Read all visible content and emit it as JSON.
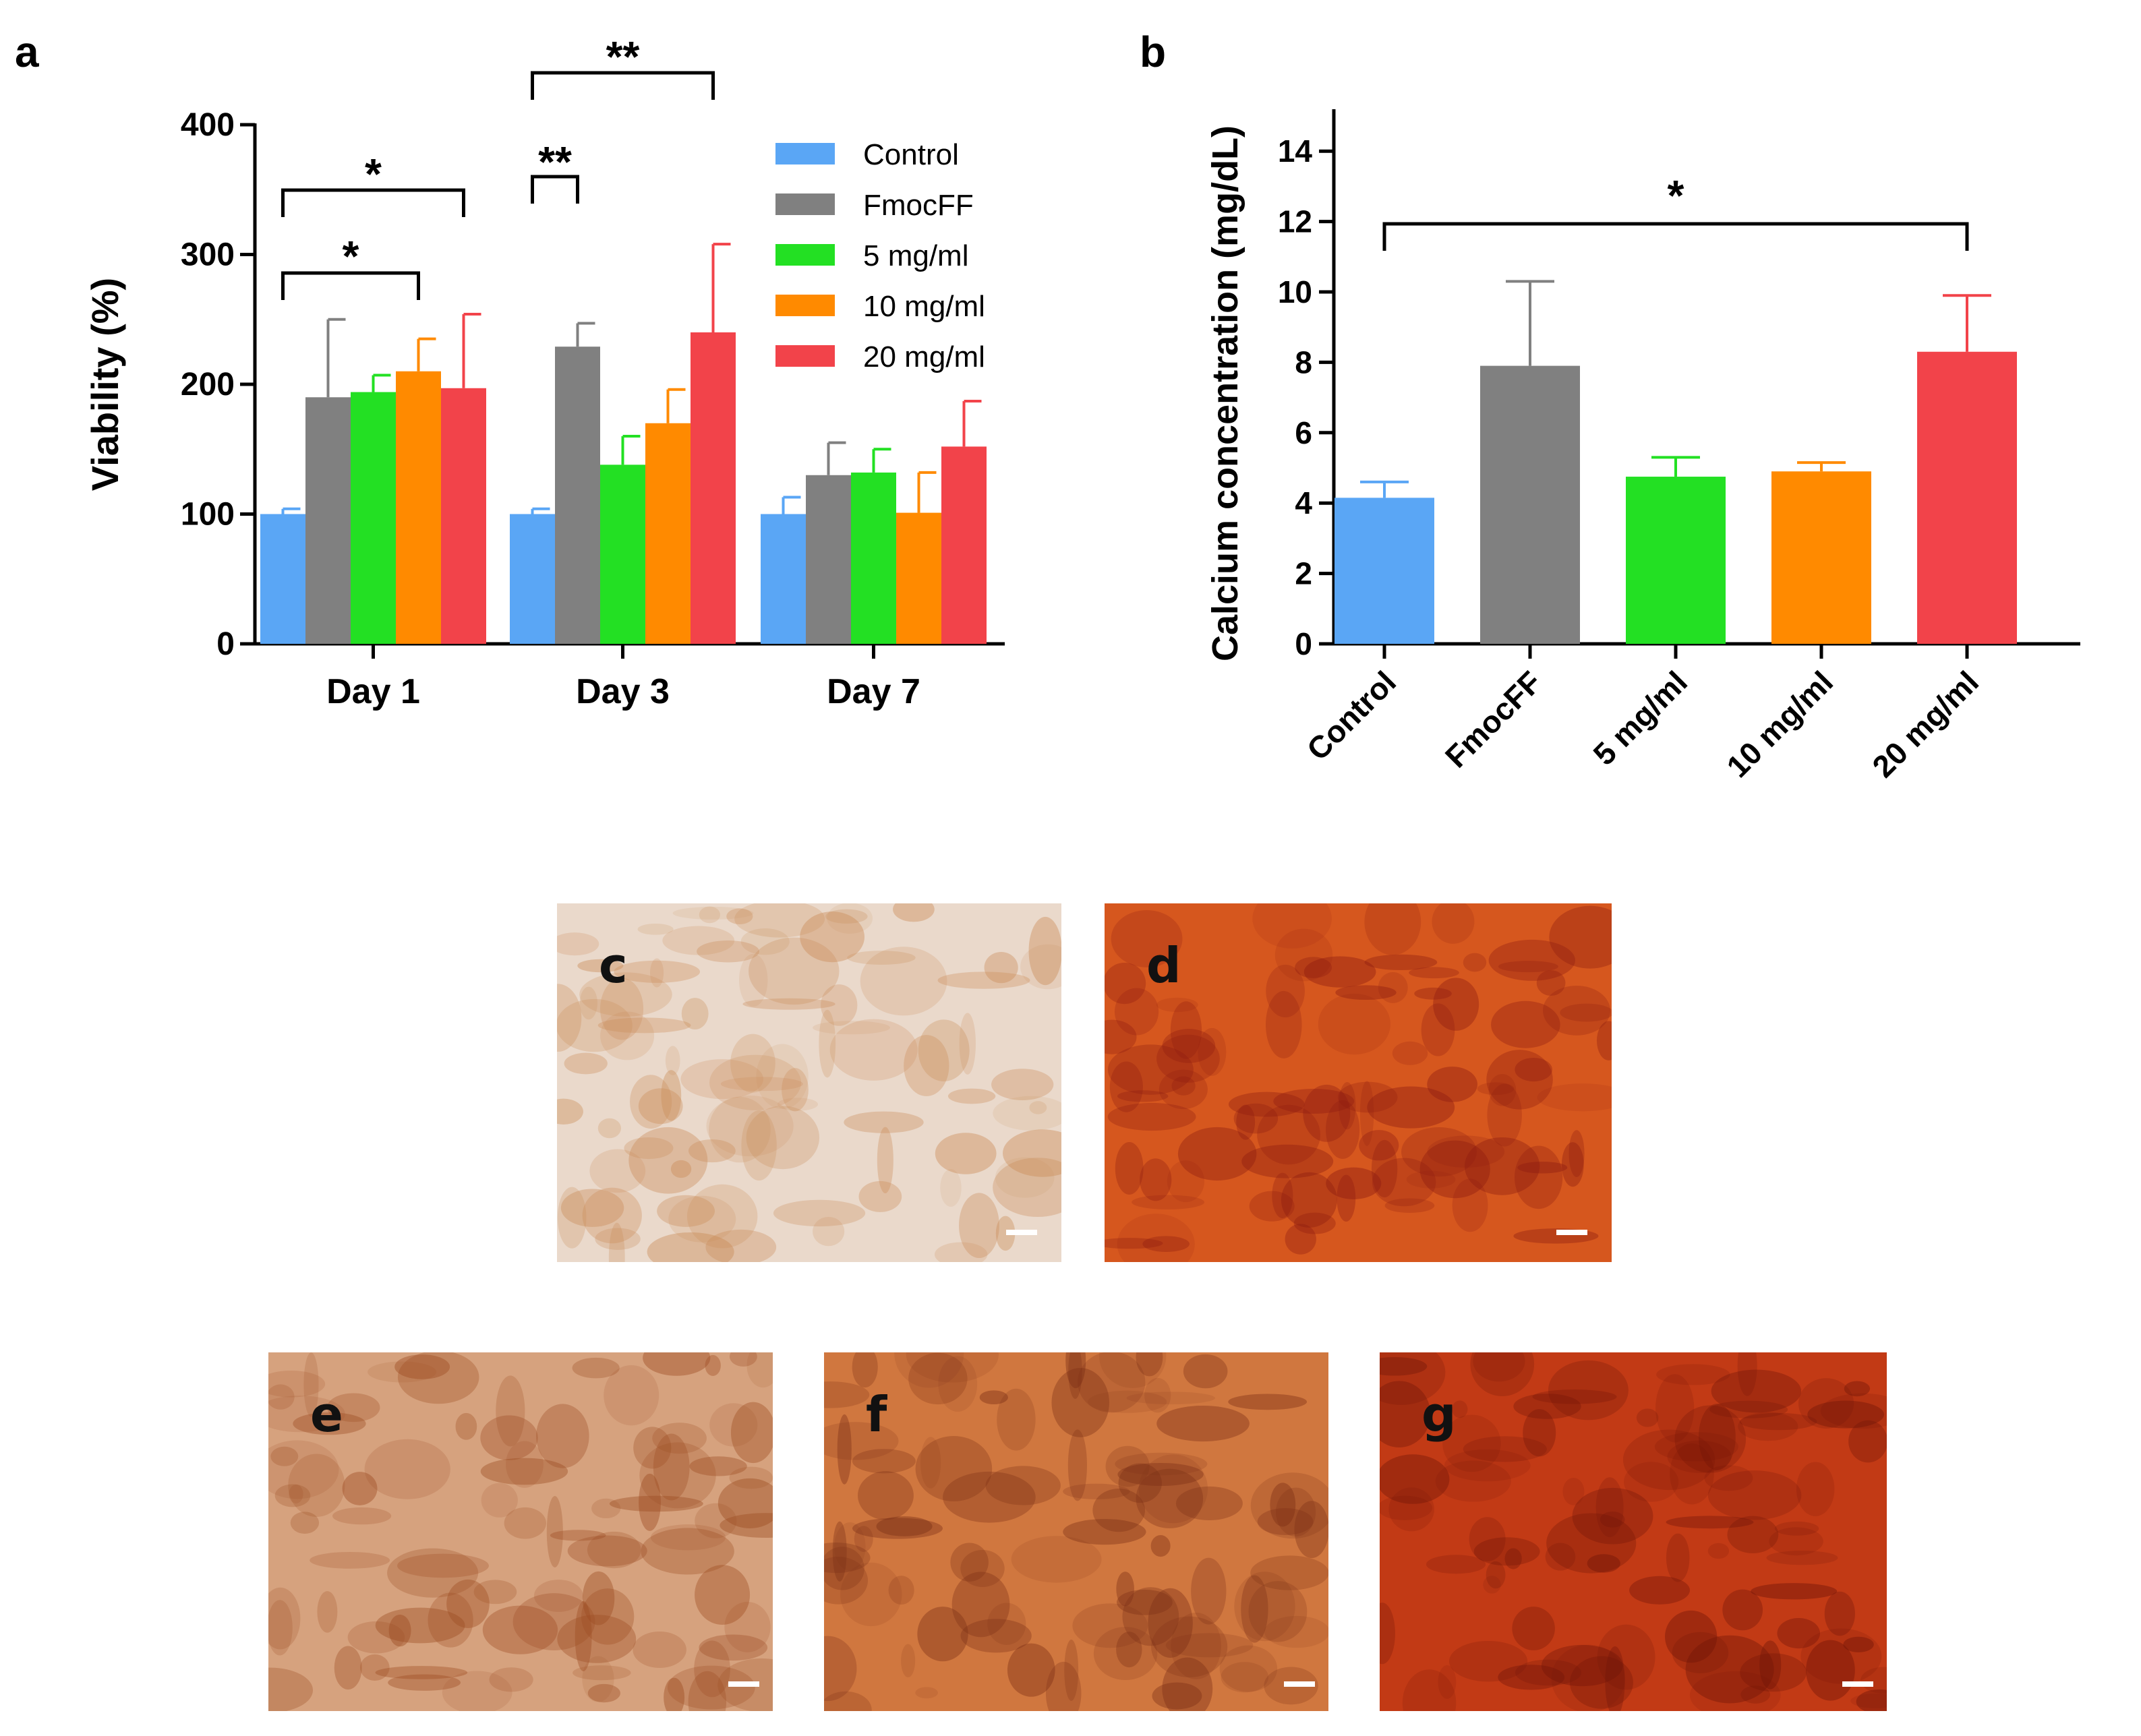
{
  "panels": {
    "a": "a",
    "b": "b",
    "images": [
      {
        "label": "c",
        "bg": "#ead9cb",
        "stain": "#c98a55"
      },
      {
        "label": "d",
        "bg": "#d6571e",
        "stain": "#8c1a10"
      },
      {
        "label": "e",
        "bg": "#d6a27e",
        "stain": "#9c4a20"
      },
      {
        "label": "f",
        "bg": "#d0773f",
        "stain": "#7a2e15"
      },
      {
        "label": "g",
        "bg": "#c23a15",
        "stain": "#6e1408"
      }
    ]
  },
  "chart_data": [
    {
      "type": "bar",
      "ylabel": "Viability (%)",
      "ylim": [
        0,
        400
      ],
      "yticks": [
        0,
        100,
        200,
        300,
        400
      ],
      "categories": [
        "Day 1",
        "Day 3",
        "Day 7"
      ],
      "series": [
        {
          "name": "Control",
          "color": "#5aa6f5",
          "values": [
            100,
            100,
            100
          ],
          "errors": [
            4,
            4,
            13
          ]
        },
        {
          "name": "FmocFF",
          "color": "#808080",
          "values": [
            190,
            229,
            130
          ],
          "errors": [
            60,
            18,
            25
          ]
        },
        {
          "name": "5 mg/ml",
          "color": "#23e023",
          "values": [
            194,
            138,
            132
          ],
          "errors": [
            13,
            22,
            18
          ]
        },
        {
          "name": "10 mg/ml",
          "color": "#ff8a00",
          "values": [
            210,
            170,
            101
          ],
          "errors": [
            25,
            26,
            31
          ]
        },
        {
          "name": "20 mg/ml",
          "color": "#f2434a",
          "values": [
            197,
            240,
            152
          ],
          "errors": [
            57,
            68,
            35
          ]
        }
      ],
      "significance": [
        {
          "group": 0,
          "from": 0,
          "to": 3,
          "label": "*"
        },
        {
          "group": 0,
          "from": 0,
          "to": 4,
          "label": "*"
        },
        {
          "group": 1,
          "from": 0,
          "to": 1,
          "label": "**"
        },
        {
          "group": 1,
          "from": 0,
          "to": 4,
          "label": "**"
        }
      ],
      "legend": "top-right"
    },
    {
      "type": "bar",
      "ylabel": "Calcium concentration (mg/dL)",
      "ylim": [
        0,
        15
      ],
      "yticks": [
        0,
        2,
        4,
        6,
        8,
        10,
        12,
        14
      ],
      "categories": [
        "Control",
        "FmocFF",
        "5 mg/ml",
        "10 mg/ml",
        "20 mg/ml"
      ],
      "colors": [
        "#5aa6f5",
        "#808080",
        "#23e023",
        "#ff8a00",
        "#f2434a"
      ],
      "values": [
        4.15,
        7.9,
        4.75,
        4.9,
        8.3
      ],
      "errors": [
        0.45,
        2.4,
        0.55,
        0.25,
        1.6
      ],
      "significance": [
        {
          "from": 0,
          "to": 4,
          "label": "*"
        }
      ]
    }
  ]
}
